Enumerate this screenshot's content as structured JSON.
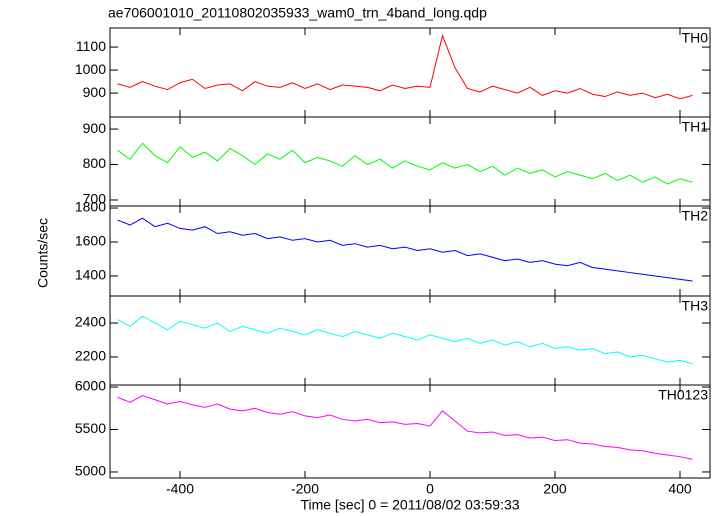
{
  "chart_data": {
    "type": "line",
    "title": "ae706001010_20110802035933_wam0_trn_4band_long.qdp",
    "xlabel": "Time [sec] 0 = 2011/08/02 03:59:33",
    "ylabel": "Counts/sec",
    "xlim": [
      -512,
      448
    ],
    "xticks": [
      -400,
      -200,
      0,
      200,
      400
    ],
    "x": [
      -500,
      -480,
      -460,
      -440,
      -420,
      -400,
      -380,
      -360,
      -340,
      -320,
      -300,
      -280,
      -260,
      -240,
      -220,
      -200,
      -180,
      -160,
      -140,
      -120,
      -100,
      -80,
      -60,
      -40,
      -20,
      0,
      20,
      40,
      60,
      80,
      100,
      120,
      140,
      160,
      180,
      200,
      220,
      240,
      260,
      280,
      300,
      320,
      340,
      360,
      380,
      400,
      420
    ],
    "panels": [
      {
        "name": "TH0",
        "color": "#ff0000",
        "ylim": [
          796,
          1183
        ],
        "yticks": [
          900,
          1000,
          1100
        ],
        "values": [
          940,
          925,
          950,
          930,
          915,
          945,
          960,
          920,
          935,
          940,
          910,
          950,
          930,
          925,
          945,
          920,
          940,
          915,
          935,
          930,
          925,
          910,
          935,
          920,
          930,
          925,
          1150,
          1010,
          920,
          905,
          930,
          915,
          900,
          925,
          890,
          910,
          900,
          920,
          895,
          885,
          905,
          890,
          900,
          880,
          895,
          875,
          890
        ]
      },
      {
        "name": "TH1",
        "color": "#00ff00",
        "ylim": [
          683,
          934
        ],
        "yticks": [
          700,
          800,
          900
        ],
        "values": [
          840,
          815,
          860,
          825,
          805,
          850,
          820,
          835,
          810,
          845,
          825,
          800,
          830,
          815,
          840,
          805,
          820,
          810,
          795,
          825,
          800,
          815,
          790,
          810,
          795,
          785,
          805,
          790,
          800,
          780,
          795,
          770,
          790,
          775,
          785,
          765,
          780,
          770,
          760,
          775,
          755,
          770,
          750,
          765,
          745,
          760,
          750
        ]
      },
      {
        "name": "TH2",
        "color": "#0000ff",
        "ylim": [
          1282,
          1812
        ],
        "yticks": [
          1400,
          1600,
          1800
        ],
        "values": [
          1730,
          1700,
          1740,
          1690,
          1710,
          1680,
          1670,
          1690,
          1650,
          1660,
          1640,
          1650,
          1620,
          1630,
          1610,
          1620,
          1600,
          1610,
          1580,
          1590,
          1570,
          1580,
          1560,
          1570,
          1550,
          1560,
          1540,
          1550,
          1520,
          1530,
          1510,
          1490,
          1500,
          1480,
          1490,
          1470,
          1460,
          1480,
          1450,
          1440,
          1430,
          1420,
          1410,
          1400,
          1390,
          1380,
          1370
        ]
      },
      {
        "name": "TH3",
        "color": "#00ffff",
        "ylim": [
          2035,
          2559
        ],
        "yticks": [
          2200,
          2400
        ],
        "values": [
          2420,
          2380,
          2440,
          2400,
          2360,
          2410,
          2390,
          2370,
          2400,
          2350,
          2380,
          2360,
          2340,
          2370,
          2350,
          2330,
          2360,
          2340,
          2320,
          2350,
          2330,
          2310,
          2340,
          2320,
          2300,
          2330,
          2310,
          2290,
          2310,
          2280,
          2300,
          2270,
          2290,
          2260,
          2280,
          2250,
          2260,
          2240,
          2250,
          2220,
          2230,
          2200,
          2210,
          2190,
          2170,
          2180,
          2160
        ]
      },
      {
        "name": "TH0123",
        "color": "#ff00ff",
        "ylim": [
          4929,
          6024
        ],
        "yticks": [
          5000,
          5500,
          6000
        ],
        "values": [
          5880,
          5820,
          5900,
          5850,
          5800,
          5830,
          5790,
          5760,
          5800,
          5740,
          5720,
          5750,
          5700,
          5680,
          5710,
          5660,
          5640,
          5670,
          5620,
          5600,
          5620,
          5580,
          5590,
          5560,
          5570,
          5540,
          5720,
          5600,
          5480,
          5460,
          5470,
          5430,
          5440,
          5400,
          5410,
          5370,
          5380,
          5340,
          5330,
          5300,
          5290,
          5260,
          5250,
          5220,
          5200,
          5180,
          5150
        ]
      }
    ]
  }
}
